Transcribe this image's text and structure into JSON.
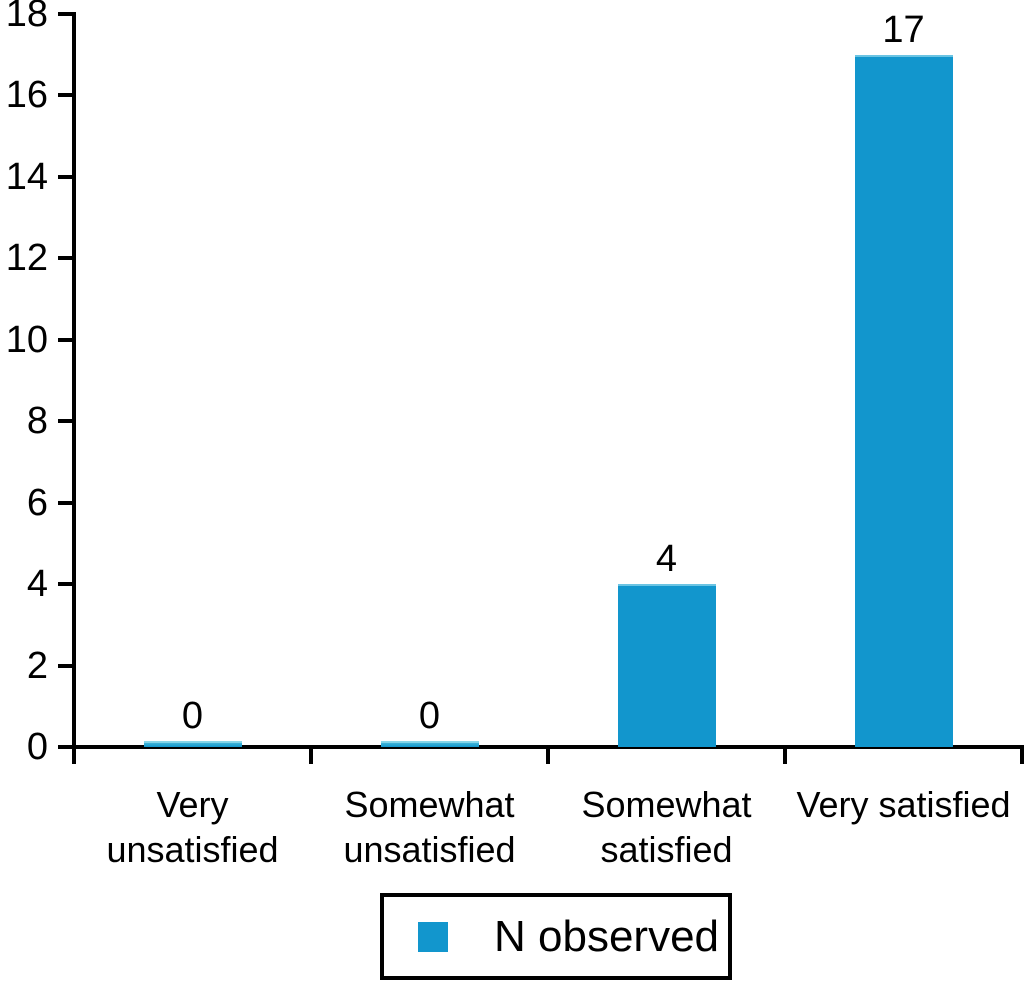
{
  "chart_data": {
    "type": "bar",
    "title": "",
    "xlabel": "",
    "ylabel": "",
    "categories": [
      "Very unsatisfied",
      "Somewhat unsatisfied",
      "Somewhat satisfied",
      "Very satisfied"
    ],
    "values": [
      0,
      0,
      4,
      17
    ],
    "data_labels": [
      "0",
      "0",
      "4",
      "17"
    ],
    "series": [
      {
        "name": "N observed",
        "values": [
          0,
          0,
          4,
          17
        ]
      }
    ],
    "yticks": [
      0,
      2,
      4,
      6,
      8,
      10,
      12,
      14,
      16,
      18
    ],
    "ylim": [
      0,
      18
    ],
    "grid": false,
    "legend_position": "bottom",
    "bar_color": "#1296cd",
    "axis_color": "#000000",
    "text_color": "#000000"
  },
  "legend": {
    "label": "N observed"
  }
}
